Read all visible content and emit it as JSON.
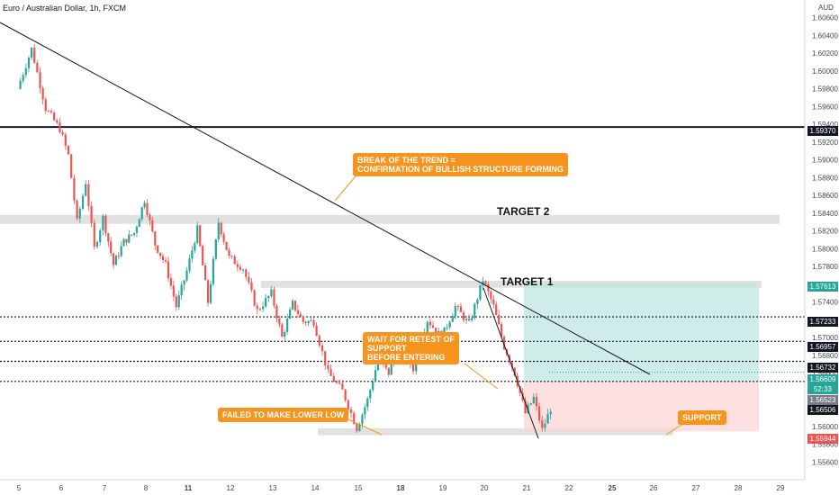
{
  "header": {
    "symbol_title": "Euro / Australian Dollar, 1h, FXCM",
    "currency": "AUD"
  },
  "colors": {
    "up": "#26a69a",
    "down": "#ef5350",
    "callout": "#f7941d",
    "green_zone": "#bfe6e1",
    "red_zone": "#fbd5d5",
    "grey_zone": "#dcdcdc"
  },
  "annotations": {
    "break": "BREAK OF THE TREND =\nCONFIRMATION OF BULLISH STRUCTURE FORMING",
    "retest": "WAIT FOR RETEST OF\nSUPPORT\nBEFORE ENTERING",
    "failed": "FAILED TO MAKE LOWER LOW",
    "support": "SUPPORT",
    "target1": "TARGET 1",
    "target2": "TARGET 2"
  },
  "price_labels": [
    {
      "text": "1.59370",
      "bg": "#131722"
    },
    {
      "text": "1.57613",
      "bg": "#26a69a"
    },
    {
      "text": "1.57233",
      "bg": "#131722"
    },
    {
      "text": "1.56957",
      "bg": "#131722"
    },
    {
      "text": "1.56732",
      "bg": "#131722"
    },
    {
      "text": "1.56609",
      "bg": "#26a69a"
    },
    {
      "text": "52:33",
      "bg": "#26a69a"
    },
    {
      "text": "1.56523",
      "bg": "#787b86"
    },
    {
      "text": "1.56506",
      "bg": "#131722"
    },
    {
      "text": "1.55944",
      "bg": "#ef5350"
    }
  ],
  "chart_data": {
    "type": "candlestick",
    "title": "Euro / Australian Dollar, 1h, FXCM",
    "y_unit": "AUD",
    "ylim": [
      1.554,
      1.608
    ],
    "y_ticks": [
      "1.60600",
      "1.60400",
      "1.60200",
      "1.60000",
      "1.59800",
      "1.59600",
      "1.59400",
      "1.59200",
      "1.59000",
      "1.58800",
      "1.58600",
      "1.58400",
      "1.58200",
      "1.58000",
      "1.57800",
      "1.57600",
      "1.57400",
      "1.57200",
      "1.57000",
      "1.56800",
      "1.56600",
      "1.56400",
      "1.56200",
      "1.56000",
      "1.55800",
      "1.55600"
    ],
    "x_ticks": [
      "5",
      "6",
      "7",
      "8",
      "11",
      "12",
      "13",
      "14",
      "15",
      "18",
      "19",
      "20",
      "21",
      "22",
      "25",
      "26",
      "27",
      "28",
      "29"
    ],
    "horizontal_lines": [
      {
        "price": 1.5937,
        "style": "solid"
      },
      {
        "price": 1.57233,
        "style": "dotted"
      },
      {
        "price": 1.56957,
        "style": "dotted"
      },
      {
        "price": 1.56732,
        "style": "dotted"
      },
      {
        "price": 1.56506,
        "style": "dotted"
      }
    ],
    "zones": [
      {
        "name": "TARGET 2",
        "from": 1.5828,
        "to": 1.5838
      },
      {
        "name": "TARGET 1",
        "from": 1.5756,
        "to": 1.5764
      },
      {
        "name": "SUPPORT",
        "from": 1.559,
        "to": 1.5598
      }
    ],
    "position": {
      "entry": 1.56506,
      "target": 1.57613,
      "stop": 1.55944
    },
    "last_price": 1.56609,
    "price_path": [
      {
        "d": "5",
        "p": 1.598
      },
      {
        "d": "5",
        "p": 1.6025
      },
      {
        "d": "5",
        "p": 1.5958
      },
      {
        "d": "6",
        "p": 1.5935
      },
      {
        "d": "6",
        "p": 1.5905
      },
      {
        "d": "6",
        "p": 1.583
      },
      {
        "d": "6",
        "p": 1.5875
      },
      {
        "d": "6",
        "p": 1.58
      },
      {
        "d": "7",
        "p": 1.5835
      },
      {
        "d": "7",
        "p": 1.5782
      },
      {
        "d": "7",
        "p": 1.5808
      },
      {
        "d": "7",
        "p": 1.5818
      },
      {
        "d": "8",
        "p": 1.5855
      },
      {
        "d": "8",
        "p": 1.5805
      },
      {
        "d": "8",
        "p": 1.5782
      },
      {
        "d": "8",
        "p": 1.5735
      },
      {
        "d": "11",
        "p": 1.5775
      },
      {
        "d": "11",
        "p": 1.5822
      },
      {
        "d": "11",
        "p": 1.574
      },
      {
        "d": "11",
        "p": 1.583
      },
      {
        "d": "12",
        "p": 1.579
      },
      {
        "d": "12",
        "p": 1.5778
      },
      {
        "d": "12",
        "p": 1.573
      },
      {
        "d": "13",
        "p": 1.575
      },
      {
        "d": "13",
        "p": 1.57
      },
      {
        "d": "13",
        "p": 1.5738
      },
      {
        "d": "13",
        "p": 1.5718
      },
      {
        "d": "14",
        "p": 1.5718
      },
      {
        "d": "14",
        "p": 1.566
      },
      {
        "d": "14",
        "p": 1.564
      },
      {
        "d": "15",
        "p": 1.5598
      },
      {
        "d": "15",
        "p": 1.563
      },
      {
        "d": "15",
        "p": 1.5675
      },
      {
        "d": "15",
        "p": 1.566
      },
      {
        "d": "18",
        "p": 1.5695
      },
      {
        "d": "18",
        "p": 1.5665
      },
      {
        "d": "18",
        "p": 1.572
      },
      {
        "d": "19",
        "p": 1.57
      },
      {
        "d": "19",
        "p": 1.5735
      },
      {
        "d": "19",
        "p": 1.5715
      },
      {
        "d": "20",
        "p": 1.5765
      },
      {
        "d": "20",
        "p": 1.5735
      },
      {
        "d": "20",
        "p": 1.569
      },
      {
        "d": "20",
        "p": 1.566
      },
      {
        "d": "21",
        "p": 1.5615
      },
      {
        "d": "21",
        "p": 1.5632
      },
      {
        "d": "21",
        "p": 1.5596
      },
      {
        "d": "21",
        "p": 1.562
      },
      {
        "d": "21",
        "p": 1.5661
      }
    ]
  }
}
